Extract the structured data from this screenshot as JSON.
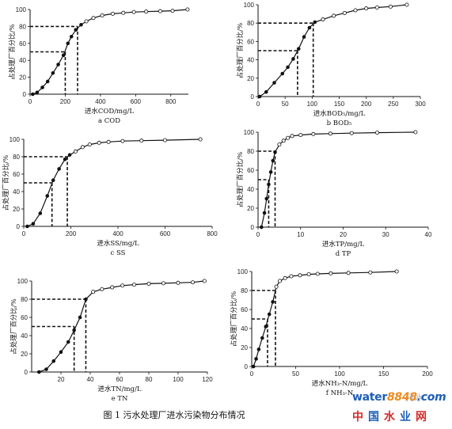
{
  "figure_caption": "图 1 污水处理厂进水污染物分布情况",
  "watermark": {
    "line1": [
      "water",
      "8848",
      ".com"
    ],
    "line2": [
      "中",
      "国",
      "水",
      "业",
      "网"
    ],
    "faint_text": "污水"
  },
  "chart_data": [
    {
      "type": "line",
      "sublabel": "a COD",
      "xlabel": "进水COD/mg/L",
      "ylabel": "占处理厂百分比/%",
      "xlim": [
        0,
        900
      ],
      "ylim": [
        0,
        100
      ],
      "xticks": [
        0,
        200,
        400,
        600,
        800
      ],
      "yticks": [
        0,
        20,
        40,
        60,
        80,
        100
      ],
      "grid": false,
      "reference_lines": [
        {
          "x": 200,
          "y": 50
        },
        {
          "x": 270,
          "y": 80
        }
      ],
      "series": [
        {
          "x": [
            15,
            40,
            70,
            100,
            130,
            160,
            190,
            215,
            235,
            260,
            290,
            320,
            360,
            410,
            470,
            530,
            590,
            660,
            740,
            810,
            895
          ],
          "y": [
            0,
            2,
            8,
            15,
            25,
            35,
            46,
            60,
            68,
            76,
            82,
            86,
            90,
            93,
            95,
            96,
            97,
            97.5,
            98,
            98.5,
            100
          ]
        }
      ]
    },
    {
      "type": "line",
      "sublabel": "b BOD₅",
      "xlabel": "进水BOD₅/mg/L",
      "ylabel": "占处理厂百分比/%",
      "xlim": [
        0,
        300
      ],
      "ylim": [
        0,
        100
      ],
      "xticks": [
        0,
        50,
        100,
        150,
        200,
        250,
        300
      ],
      "yticks": [
        0,
        20,
        40,
        60,
        80,
        100
      ],
      "grid": false,
      "reference_lines": [
        {
          "x": 73,
          "y": 50
        },
        {
          "x": 102,
          "y": 80
        }
      ],
      "series": [
        {
          "x": [
            3,
            15,
            30,
            45,
            55,
            65,
            75,
            85,
            95,
            105,
            120,
            140,
            160,
            180,
            200,
            220,
            245,
            275
          ],
          "y": [
            0,
            5,
            15,
            25,
            32,
            41,
            52,
            65,
            75,
            81,
            84,
            88,
            91,
            94,
            96,
            97,
            98,
            100
          ]
        }
      ]
    },
    {
      "type": "line",
      "sublabel": "c SS",
      "xlabel": "进水SS/mg/L",
      "ylabel": "占处理厂百分比/%",
      "xlim": [
        0,
        800
      ],
      "ylim": [
        0,
        100
      ],
      "xticks": [
        0,
        200,
        400,
        600,
        800
      ],
      "yticks": [
        0,
        20,
        40,
        60,
        80,
        100
      ],
      "grid": false,
      "reference_lines": [
        {
          "x": 120,
          "y": 50
        },
        {
          "x": 185,
          "y": 80
        }
      ],
      "series": [
        {
          "x": [
            15,
            40,
            70,
            100,
            125,
            150,
            175,
            195,
            220,
            250,
            280,
            320,
            360,
            420,
            500,
            600,
            750
          ],
          "y": [
            0,
            3,
            15,
            35,
            53,
            66,
            77,
            82,
            86,
            91,
            94,
            96,
            97,
            98,
            98.5,
            99,
            100
          ]
        }
      ]
    },
    {
      "type": "line",
      "sublabel": "d TP",
      "xlabel": "进水TP/mg/L",
      "ylabel": "占处理厂百分比/%",
      "xlim": [
        0,
        40
      ],
      "ylim": [
        0,
        100
      ],
      "xticks": [
        0,
        10,
        20,
        30,
        40
      ],
      "yticks": [
        0,
        20,
        40,
        60,
        80,
        100
      ],
      "grid": false,
      "reference_lines": [
        {
          "x": 2.5,
          "y": 50
        },
        {
          "x": 4,
          "y": 80
        }
      ],
      "series": [
        {
          "x": [
            0.8,
            1.5,
            2,
            2.5,
            3,
            3.5,
            4,
            5,
            6,
            7,
            8,
            10,
            13,
            17,
            22,
            28,
            37
          ],
          "y": [
            0,
            15,
            30,
            45,
            58,
            70,
            79,
            87,
            91,
            94,
            96,
            97,
            98,
            98.5,
            99,
            99.5,
            100
          ]
        }
      ]
    },
    {
      "type": "line",
      "sublabel": "e TN",
      "xlabel": "进水TN/mg/L",
      "ylabel": "占处理厂百分比/%",
      "xlim": [
        0,
        120
      ],
      "ylim": [
        0,
        100
      ],
      "xticks": [
        20,
        40,
        60,
        80,
        100,
        120
      ],
      "yticks": [
        0,
        20,
        40,
        60,
        80,
        100
      ],
      "grid": false,
      "reference_lines": [
        {
          "x": 29,
          "y": 50
        },
        {
          "x": 37,
          "y": 80
        }
      ],
      "series": [
        {
          "x": [
            5,
            10,
            15,
            20,
            25,
            29,
            33,
            37,
            42,
            48,
            55,
            62,
            70,
            80,
            90,
            100,
            110,
            118
          ],
          "y": [
            0,
            3,
            12,
            22,
            33,
            46,
            60,
            80,
            88,
            91,
            93,
            95,
            96,
            97,
            97.5,
            98,
            98.5,
            100
          ]
        }
      ]
    },
    {
      "type": "line",
      "sublabel": "f NH₃-N",
      "xlabel": "进水NH₃-N/mg/L",
      "ylabel": "占处理厂百分比/%",
      "xlim": [
        0,
        200
      ],
      "ylim": [
        0,
        100
      ],
      "xticks": [
        0,
        50,
        100,
        150,
        200
      ],
      "yticks": [
        0,
        20,
        40,
        60,
        80,
        100
      ],
      "grid": false,
      "reference_lines": [
        {
          "x": 18,
          "y": 50
        },
        {
          "x": 27,
          "y": 80
        }
      ],
      "series": [
        {
          "x": [
            2,
            5,
            8,
            12,
            16,
            20,
            24,
            28,
            32,
            38,
            45,
            55,
            65,
            75,
            90,
            110,
            135,
            165
          ],
          "y": [
            0,
            8,
            18,
            30,
            42,
            55,
            68,
            84,
            90,
            93,
            95,
            96,
            97,
            97.5,
            98,
            98.5,
            99,
            100
          ]
        }
      ]
    }
  ]
}
